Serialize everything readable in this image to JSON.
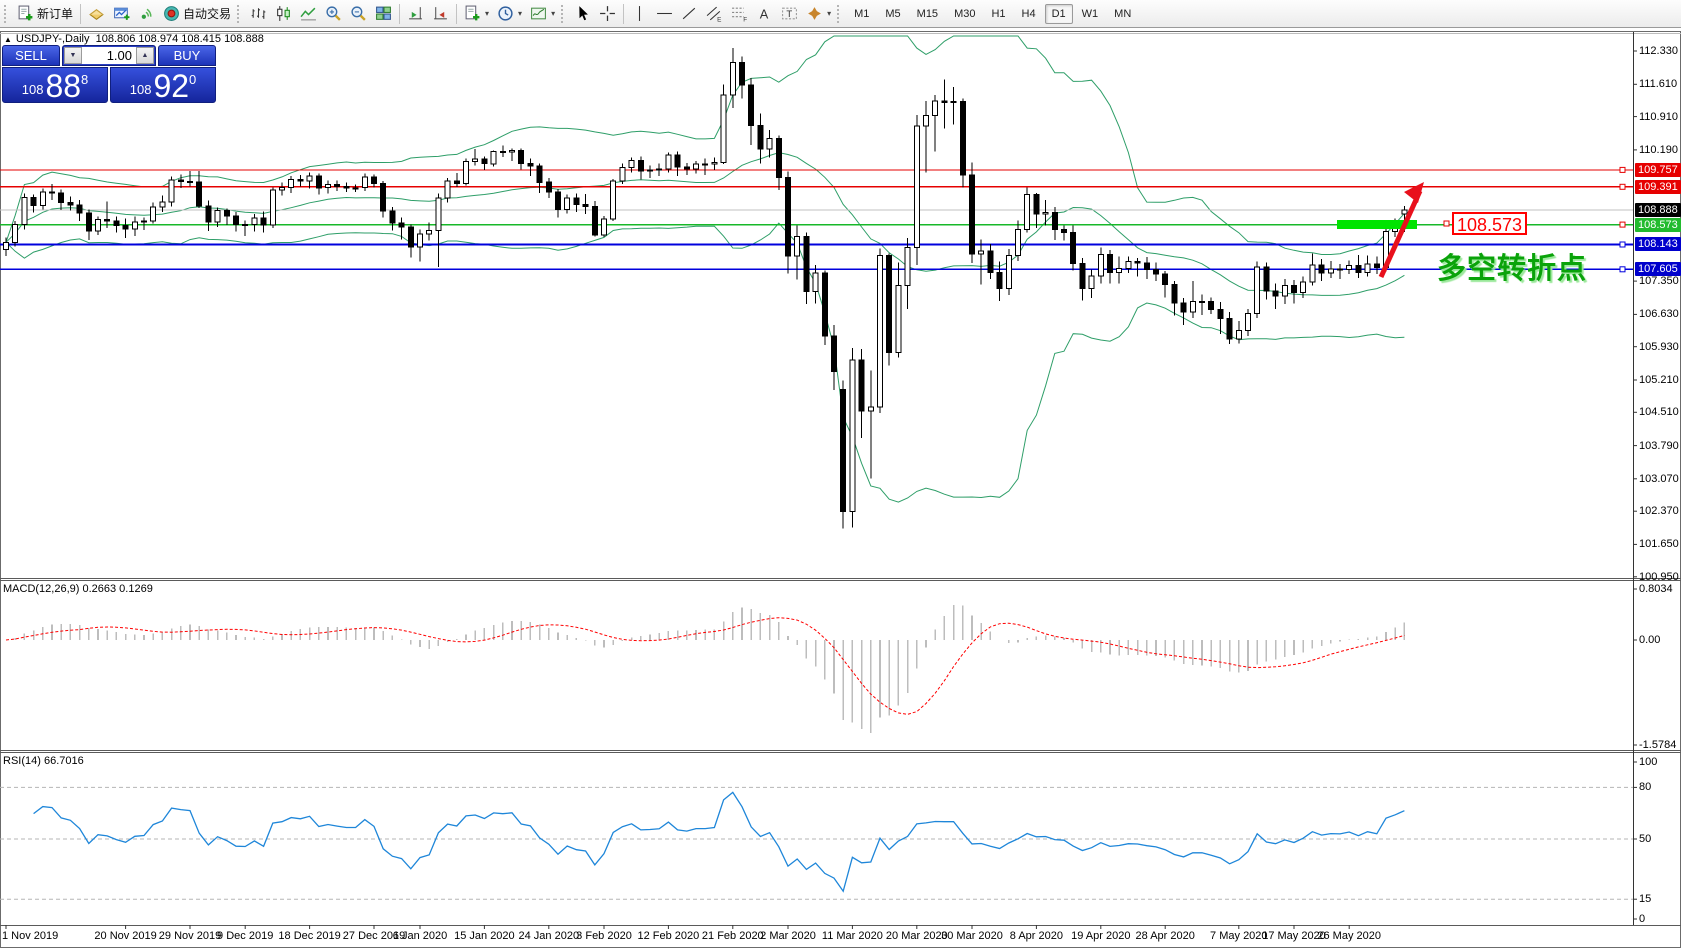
{
  "toolbar": {
    "groups": [
      {
        "items": [
          {
            "icon": "new-order-icon",
            "label": "新订单"
          }
        ]
      },
      {
        "items": [
          {
            "icon": "terminal-icon"
          },
          {
            "icon": "new-chart-icon"
          },
          {
            "icon": "signals-icon"
          },
          {
            "icon": "autotrading-icon",
            "label": "自动交易"
          }
        ]
      },
      {
        "items": [
          {
            "icon": "chart-bars-icon"
          },
          {
            "icon": "chart-candles-icon"
          },
          {
            "icon": "chart-line-icon"
          },
          {
            "icon": "zoom-in-icon"
          },
          {
            "icon": "zoom-out-icon"
          },
          {
            "icon": "tile-windows-icon"
          }
        ]
      },
      {
        "items": [
          {
            "icon": "shift-end-icon"
          },
          {
            "icon": "autoscroll-icon"
          }
        ]
      },
      {
        "items": [
          {
            "icon": "new-template-icon",
            "caret": true
          },
          {
            "icon": "periods-clock-icon",
            "caret": true
          },
          {
            "icon": "template-chart-icon",
            "caret": true
          }
        ]
      },
      {
        "items": [
          {
            "icon": "cursor-icon"
          },
          {
            "icon": "crosshair-icon"
          }
        ]
      },
      {
        "items": [
          {
            "icon": "vline-icon"
          },
          {
            "icon": "hline-icon"
          },
          {
            "icon": "trendline-icon"
          },
          {
            "icon": "channel-icon"
          },
          {
            "icon": "fibo-icon"
          },
          {
            "icon": "text-icon"
          },
          {
            "icon": "label-icon"
          },
          {
            "icon": "arrows-icon",
            "caret": true
          }
        ]
      }
    ],
    "timeframes": [
      {
        "label": "M1"
      },
      {
        "label": "M5"
      },
      {
        "label": "M15"
      },
      {
        "label": "M30"
      },
      {
        "label": "H1"
      },
      {
        "label": "H4"
      },
      {
        "label": "D1",
        "active": true
      },
      {
        "label": "W1"
      },
      {
        "label": "MN"
      }
    ],
    "right_icons": [
      {
        "icon": "search-icon"
      },
      {
        "icon": "chat-icon"
      }
    ]
  },
  "chart": {
    "title": {
      "collapse": "▲",
      "symbol": "USDJPY-,Daily",
      "ohlc": "108.806 108.974 108.415 108.888"
    },
    "trade_panel": {
      "sell_label": "SELL",
      "buy_label": "BUY",
      "volume": "1.00",
      "spin_down": "▼",
      "spin_up": "▲",
      "sell_prefix": "108",
      "sell_big": "88",
      "sell_sup": "8",
      "buy_prefix": "108",
      "buy_big": "92",
      "buy_sup": "0"
    },
    "price_axis_ticks": [
      "112.330",
      "111.610",
      "110.910",
      "110.190",
      "107.350",
      "106.630",
      "105.930",
      "105.210",
      "104.510",
      "103.790",
      "103.070",
      "102.370",
      "101.650",
      "100.950"
    ],
    "levels": [
      {
        "value": "109.757",
        "line": "#e60000",
        "badge": "#e60000",
        "width": 1.3,
        "handle": true,
        "handle_color": "#e60000"
      },
      {
        "value": "109.391",
        "line": "#e60000",
        "badge": "#e60000",
        "width": 1.3,
        "handle": true,
        "handle_color": "#e60000"
      },
      {
        "value": "108.888",
        "line": "#c0c0c0",
        "badge": "#000000",
        "width": 1,
        "handle": false
      },
      {
        "value": "108.573",
        "line": "#17b829",
        "badge": "#22bb2e",
        "width": 1.4,
        "handle": true,
        "handle_color": "#e60000"
      },
      {
        "value": "108.143",
        "line": "#0000dd",
        "badge": "#0000cc",
        "width": 1.6,
        "handle": true,
        "handle_color": "#0000dd"
      },
      {
        "value": "107.605",
        "line": "#0000dd",
        "badge": "#0000cc",
        "width": 1.6,
        "handle": true,
        "handle_color": "#0000dd"
      }
    ],
    "annotations": {
      "callout": "108.573",
      "turning_point": "多空转折点",
      "highlight_color": "#00e400",
      "arrow_color": "#e8101c"
    },
    "colors": {
      "bull": "#ffffff",
      "bear": "#000000",
      "wick": "#000000",
      "bollinger": "#2e9e68"
    },
    "date_ticks": [
      {
        "label": "1 Nov 2019",
        "i": 0
      },
      {
        "label": "20 Nov 2019",
        "i": 13
      },
      {
        "label": "29 Nov 2019",
        "i": 20
      },
      {
        "label": "9 Dec 2019",
        "i": 26
      },
      {
        "label": "18 Dec 2019",
        "i": 33
      },
      {
        "label": "27 Dec 2019",
        "i": 40
      },
      {
        "label": "6 Jan 2020",
        "i": 45
      },
      {
        "label": "15 Jan 2020",
        "i": 52
      },
      {
        "label": "24 Jan 2020",
        "i": 59
      },
      {
        "label": "3 Feb 2020",
        "i": 65
      },
      {
        "label": "12 Feb 2020",
        "i": 72
      },
      {
        "label": "21 Feb 2020",
        "i": 79
      },
      {
        "label": "2 Mar 2020",
        "i": 85
      },
      {
        "label": "11 Mar 2020",
        "i": 92
      },
      {
        "label": "20 Mar 2020",
        "i": 99
      },
      {
        "label": "30 Mar 2020",
        "i": 105
      },
      {
        "label": "8 Apr 2020",
        "i": 112
      },
      {
        "label": "19 Apr 2020",
        "i": 119
      },
      {
        "label": "28 Apr 2020",
        "i": 126
      },
      {
        "label": "7 May 2020",
        "i": 134
      },
      {
        "label": "17 May 2020",
        "i": 140
      },
      {
        "label": "26 May 2020",
        "i": 146
      }
    ],
    "candles": [
      [
        108.03,
        108.29,
        107.89,
        108.19
      ],
      [
        108.19,
        108.65,
        108.1,
        108.58
      ],
      [
        108.58,
        109.25,
        108.47,
        109.16
      ],
      [
        109.16,
        109.22,
        108.84,
        108.99
      ],
      [
        108.99,
        109.35,
        108.9,
        109.28
      ],
      [
        109.28,
        109.45,
        109.1,
        109.26
      ],
      [
        109.26,
        109.33,
        108.89,
        109.05
      ],
      [
        109.05,
        109.18,
        108.88,
        109.0
      ],
      [
        109.0,
        109.1,
        108.65,
        108.82
      ],
      [
        108.82,
        108.9,
        108.24,
        108.43
      ],
      [
        108.43,
        108.75,
        108.35,
        108.68
      ],
      [
        108.68,
        109.07,
        108.5,
        108.65
      ],
      [
        108.65,
        108.75,
        108.4,
        108.55
      ],
      [
        108.55,
        108.7,
        108.28,
        108.48
      ],
      [
        108.48,
        108.75,
        108.33,
        108.63
      ],
      [
        108.63,
        108.73,
        108.46,
        108.65
      ],
      [
        108.65,
        109.05,
        108.6,
        108.95
      ],
      [
        108.95,
        109.2,
        108.85,
        109.06
      ],
      [
        109.06,
        109.61,
        108.96,
        109.54
      ],
      [
        109.54,
        109.66,
        109.36,
        109.51
      ],
      [
        109.51,
        109.73,
        109.4,
        109.49
      ],
      [
        109.49,
        109.73,
        108.93,
        108.98
      ],
      [
        108.98,
        109.09,
        108.43,
        108.63
      ],
      [
        108.63,
        108.94,
        108.52,
        108.88
      ],
      [
        108.88,
        108.92,
        108.56,
        108.76
      ],
      [
        108.76,
        108.85,
        108.42,
        108.58
      ],
      [
        108.58,
        108.66,
        108.33,
        108.57
      ],
      [
        108.57,
        108.8,
        108.42,
        108.72
      ],
      [
        108.72,
        108.86,
        108.4,
        108.56
      ],
      [
        108.56,
        109.38,
        108.5,
        109.32
      ],
      [
        109.32,
        109.48,
        109.2,
        109.38
      ],
      [
        109.38,
        109.63,
        109.26,
        109.55
      ],
      [
        109.55,
        109.65,
        109.4,
        109.52
      ],
      [
        109.52,
        109.7,
        109.35,
        109.62
      ],
      [
        109.62,
        109.68,
        109.22,
        109.37
      ],
      [
        109.37,
        109.53,
        109.25,
        109.44
      ],
      [
        109.44,
        109.53,
        109.3,
        109.4
      ],
      [
        109.4,
        109.48,
        109.28,
        109.37
      ],
      [
        109.37,
        109.44,
        109.28,
        109.37
      ],
      [
        109.37,
        109.68,
        109.3,
        109.6
      ],
      [
        109.6,
        109.66,
        109.38,
        109.46
      ],
      [
        109.46,
        109.52,
        108.73,
        108.87
      ],
      [
        108.87,
        108.95,
        108.45,
        108.61
      ],
      [
        108.61,
        108.73,
        108.25,
        108.52
      ],
      [
        108.52,
        108.58,
        107.86,
        108.09
      ],
      [
        108.09,
        108.47,
        107.77,
        108.37
      ],
      [
        108.37,
        108.62,
        108.23,
        108.44
      ],
      [
        108.44,
        109.25,
        107.65,
        109.15
      ],
      [
        109.15,
        109.58,
        109.05,
        109.52
      ],
      [
        109.52,
        109.69,
        109.39,
        109.46
      ],
      [
        109.46,
        110.0,
        109.42,
        109.94
      ],
      [
        109.94,
        110.21,
        109.85,
        109.99
      ],
      [
        109.99,
        110.05,
        109.75,
        109.89
      ],
      [
        109.89,
        110.18,
        109.83,
        110.16
      ],
      [
        110.16,
        110.29,
        110.04,
        110.14
      ],
      [
        110.14,
        110.22,
        109.95,
        110.18
      ],
      [
        110.18,
        110.22,
        109.77,
        109.89
      ],
      [
        109.89,
        110.0,
        109.63,
        109.84
      ],
      [
        109.84,
        109.89,
        109.26,
        109.49
      ],
      [
        109.49,
        109.58,
        109.15,
        109.28
      ],
      [
        109.28,
        109.34,
        108.73,
        108.9
      ],
      [
        108.9,
        109.22,
        108.81,
        109.15
      ],
      [
        109.15,
        109.25,
        108.85,
        109.01
      ],
      [
        109.01,
        109.23,
        108.8,
        108.96
      ],
      [
        108.96,
        109.08,
        108.31,
        108.35
      ],
      [
        108.35,
        108.76,
        108.3,
        108.69
      ],
      [
        108.69,
        109.56,
        108.65,
        109.52
      ],
      [
        109.52,
        109.89,
        109.45,
        109.81
      ],
      [
        109.81,
        110.03,
        109.7,
        109.96
      ],
      [
        109.96,
        110.05,
        109.55,
        109.73
      ],
      [
        109.73,
        109.85,
        109.58,
        109.75
      ],
      [
        109.75,
        109.9,
        109.63,
        109.78
      ],
      [
        109.78,
        110.13,
        109.7,
        110.08
      ],
      [
        110.08,
        110.15,
        109.62,
        109.82
      ],
      [
        109.82,
        109.91,
        109.65,
        109.78
      ],
      [
        109.78,
        109.95,
        109.68,
        109.88
      ],
      [
        109.88,
        110.0,
        109.65,
        109.88
      ],
      [
        109.88,
        110.02,
        109.76,
        109.92
      ],
      [
        109.92,
        111.6,
        109.88,
        111.38
      ],
      [
        111.38,
        112.4,
        111.1,
        112.08
      ],
      [
        112.08,
        112.21,
        111.3,
        111.59
      ],
      [
        111.59,
        111.75,
        110.3,
        110.72
      ],
      [
        110.72,
        110.98,
        109.9,
        110.21
      ],
      [
        110.21,
        110.62,
        110.02,
        110.44
      ],
      [
        110.44,
        110.5,
        109.32,
        109.59
      ],
      [
        109.59,
        109.72,
        107.51,
        107.89
      ],
      [
        107.89,
        108.55,
        107.38,
        108.32
      ],
      [
        108.32,
        108.4,
        106.85,
        107.13
      ],
      [
        107.13,
        107.7,
        106.86,
        107.53
      ],
      [
        107.53,
        107.58,
        105.97,
        106.16
      ],
      [
        106.16,
        106.4,
        104.99,
        105.39
      ],
      [
        105.0,
        105.2,
        102.0,
        102.36
      ],
      [
        102.36,
        105.9,
        102.02,
        105.64
      ],
      [
        105.64,
        105.88,
        103.95,
        104.54
      ],
      [
        104.54,
        105.42,
        103.08,
        104.63
      ],
      [
        104.63,
        108.06,
        104.5,
        107.9
      ],
      [
        107.9,
        107.95,
        105.52,
        105.81
      ],
      [
        105.81,
        107.75,
        105.7,
        107.26
      ],
      [
        107.26,
        108.28,
        106.75,
        108.08
      ],
      [
        108.08,
        110.95,
        107.7,
        110.71
      ],
      [
        110.71,
        111.25,
        109.7,
        110.93
      ],
      [
        110.93,
        111.38,
        110.15,
        111.25
      ],
      [
        111.25,
        111.71,
        110.65,
        111.22
      ],
      [
        111.22,
        111.55,
        110.74,
        111.24
      ],
      [
        111.24,
        111.3,
        109.38,
        109.65
      ],
      [
        109.65,
        109.92,
        107.74,
        107.94
      ],
      [
        107.94,
        108.25,
        107.28,
        108.0
      ],
      [
        108.0,
        108.15,
        107.4,
        107.54
      ],
      [
        107.54,
        107.77,
        106.92,
        107.19
      ],
      [
        107.19,
        108.05,
        107.05,
        107.9
      ],
      [
        107.9,
        108.66,
        107.78,
        108.47
      ],
      [
        108.47,
        109.38,
        108.4,
        109.22
      ],
      [
        109.22,
        109.26,
        108.5,
        108.8
      ],
      [
        108.8,
        109.1,
        108.55,
        108.84
      ],
      [
        108.84,
        108.95,
        108.24,
        108.47
      ],
      [
        108.47,
        108.55,
        108.23,
        108.4
      ],
      [
        108.4,
        108.55,
        107.58,
        107.73
      ],
      [
        107.73,
        107.85,
        106.93,
        107.19
      ],
      [
        107.19,
        107.6,
        106.98,
        107.46
      ],
      [
        107.46,
        108.08,
        107.3,
        107.93
      ],
      [
        107.93,
        108.02,
        107.3,
        107.54
      ],
      [
        107.54,
        107.88,
        107.3,
        107.62
      ],
      [
        107.62,
        107.88,
        107.52,
        107.77
      ],
      [
        107.77,
        107.85,
        107.45,
        107.74
      ],
      [
        107.74,
        107.87,
        107.4,
        107.6
      ],
      [
        107.6,
        107.75,
        107.35,
        107.5
      ],
      [
        107.5,
        107.57,
        106.99,
        107.28
      ],
      [
        107.28,
        107.35,
        106.6,
        106.88
      ],
      [
        106.88,
        106.98,
        106.4,
        106.68
      ],
      [
        106.68,
        107.35,
        106.55,
        106.91
      ],
      [
        106.91,
        107.06,
        106.62,
        106.91
      ],
      [
        106.91,
        107.0,
        106.64,
        106.74
      ],
      [
        106.74,
        106.9,
        106.2,
        106.54
      ],
      [
        106.54,
        106.68,
        105.99,
        106.1
      ],
      [
        106.1,
        106.49,
        106.0,
        106.28
      ],
      [
        106.28,
        106.75,
        106.16,
        106.65
      ],
      [
        106.65,
        107.77,
        106.55,
        107.65
      ],
      [
        107.65,
        107.75,
        106.95,
        107.14
      ],
      [
        107.14,
        107.3,
        106.75,
        107.03
      ],
      [
        107.03,
        107.4,
        106.85,
        107.25
      ],
      [
        107.25,
        107.37,
        106.87,
        107.1
      ],
      [
        107.1,
        107.45,
        106.98,
        107.33
      ],
      [
        107.33,
        107.95,
        107.25,
        107.7
      ],
      [
        107.7,
        107.83,
        107.35,
        107.53
      ],
      [
        107.53,
        107.78,
        107.42,
        107.61
      ],
      [
        107.61,
        107.72,
        107.4,
        107.6
      ],
      [
        107.6,
        107.8,
        107.5,
        107.69
      ],
      [
        107.69,
        107.92,
        107.42,
        107.54
      ],
      [
        107.54,
        107.9,
        107.45,
        107.72
      ],
      [
        107.72,
        107.88,
        107.5,
        107.64
      ],
      [
        107.64,
        108.52,
        107.56,
        108.42
      ],
      [
        108.42,
        108.7,
        108.3,
        108.63
      ],
      [
        108.806,
        108.974,
        108.415,
        108.888
      ]
    ]
  },
  "macd": {
    "label": "MACD(12,26,9) 0.2663 0.1269",
    "fast": 12,
    "slow": 26,
    "signal": 9,
    "ticks": [
      {
        "t": "0.8034",
        "v": 0.8034
      },
      {
        "t": "0.00",
        "v": 0
      },
      {
        "t": "-1.5784",
        "v": -1.5784
      }
    ],
    "hist_color": "#bdbdbd",
    "signal_color": "#ff0000"
  },
  "rsi": {
    "label": "RSI(14) 66.7016",
    "period": 14,
    "ticks": [
      {
        "t": "100",
        "v": 100
      },
      {
        "t": "80",
        "v": 80
      },
      {
        "t": "50",
        "v": 50
      },
      {
        "t": "15",
        "v": 15
      },
      {
        "t": "0",
        "v": 0
      }
    ],
    "grid": [
      80,
      50,
      15
    ],
    "line_color": "#1e86d9"
  }
}
